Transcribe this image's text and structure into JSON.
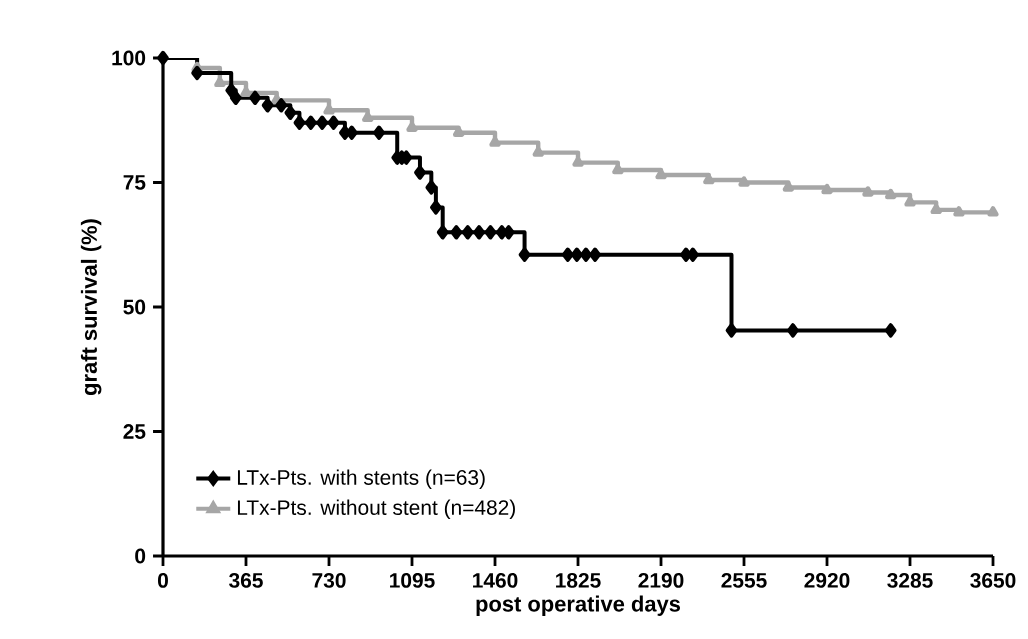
{
  "chart_data": {
    "type": "step",
    "xlabel": "post operative days",
    "ylabel": "graft survival (%)",
    "xlim": [
      0,
      3650
    ],
    "ylim": [
      0,
      100
    ],
    "xticks": [
      0,
      365,
      730,
      1095,
      1460,
      1825,
      2190,
      2555,
      2920,
      3285,
      3650
    ],
    "yticks": [
      0,
      25,
      50,
      75,
      100
    ],
    "legend": "bottom left",
    "grid": false,
    "line_style": "solid",
    "series": [
      {
        "name": "LTx-Pts. with stents (n=63)",
        "color": "#000000",
        "marker": "diamond",
        "x": [
          0,
          150,
          300,
          320,
          405,
          460,
          520,
          560,
          600,
          650,
          700,
          750,
          800,
          830,
          950,
          1030,
          1050,
          1070,
          1130,
          1180,
          1200,
          1230,
          1290,
          1340,
          1390,
          1440,
          1490,
          1520,
          1590,
          1780,
          1820,
          1860,
          1900,
          2300,
          2330,
          2500,
          2770,
          3200
        ],
        "values": [
          100,
          97,
          93.5,
          92,
          92,
          90.5,
          90.5,
          89,
          87,
          87,
          87,
          87,
          85,
          85,
          85,
          80,
          80,
          80,
          77,
          74,
          70,
          65,
          65,
          65,
          65,
          65,
          65,
          65,
          60.5,
          60.5,
          60.5,
          60.5,
          60.5,
          60.5,
          60.5,
          45.3,
          45.3,
          45.3
        ]
      },
      {
        "name": "LTx-Pts. without stent (n=482)",
        "color": "#a6a6a6",
        "marker": "triangle",
        "x": [
          150,
          250,
          365,
          500,
          730,
          900,
          1095,
          1300,
          1460,
          1650,
          1825,
          2000,
          2190,
          2400,
          2555,
          2750,
          2920,
          3100,
          3200,
          3285,
          3400,
          3500,
          3650
        ],
        "values": [
          98,
          95,
          93,
          91.5,
          89.5,
          88,
          86,
          85,
          83,
          81,
          79,
          77.5,
          76.5,
          75.5,
          75,
          74,
          73.5,
          73,
          72.5,
          71,
          69.5,
          69,
          69
        ]
      }
    ]
  }
}
